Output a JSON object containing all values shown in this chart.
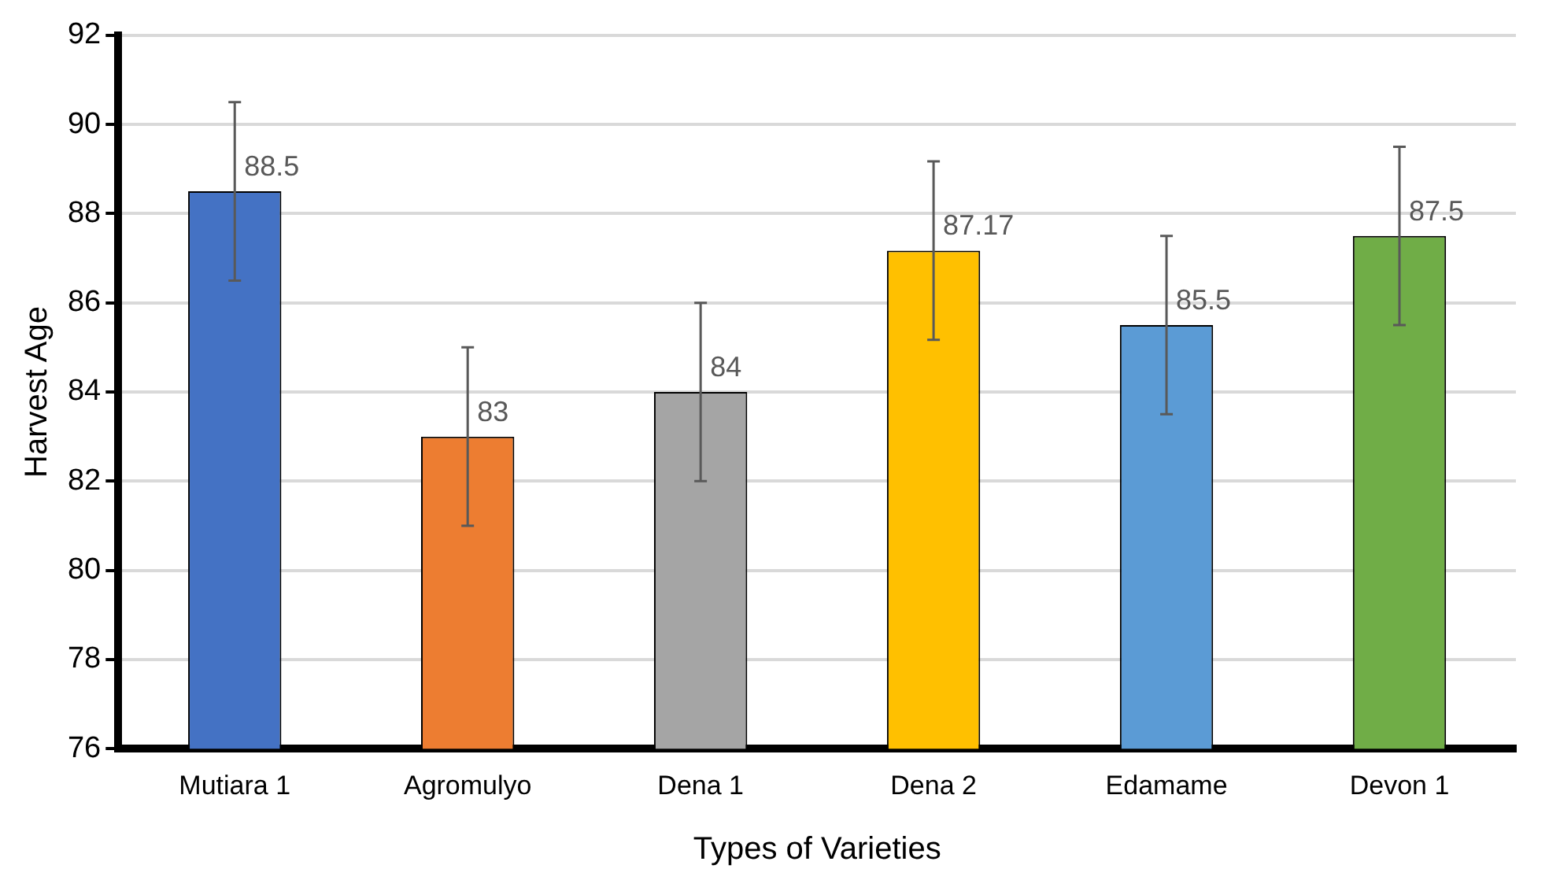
{
  "chart_data": {
    "type": "bar",
    "xlabel": "Types of Varieties",
    "ylabel": "Harvest Age",
    "categories": [
      "Mutiara 1",
      "Agromulyo",
      "Dena 1",
      "Dena 2",
      "Edamame",
      "Devon 1"
    ],
    "values": [
      88.5,
      83,
      84,
      87.17,
      85.5,
      87.5
    ],
    "colors": [
      "#4472c4",
      "#ed7d31",
      "#a5a5a5",
      "#ffc000",
      "#5b9bd5",
      "#70ad47"
    ],
    "errors": [
      2,
      2,
      2,
      2,
      2,
      2
    ],
    "ylim": [
      76,
      92
    ],
    "yticks": [
      76,
      78,
      80,
      82,
      84,
      86,
      88,
      90,
      92
    ],
    "grid": "y",
    "data_labels": true,
    "legend": false
  }
}
